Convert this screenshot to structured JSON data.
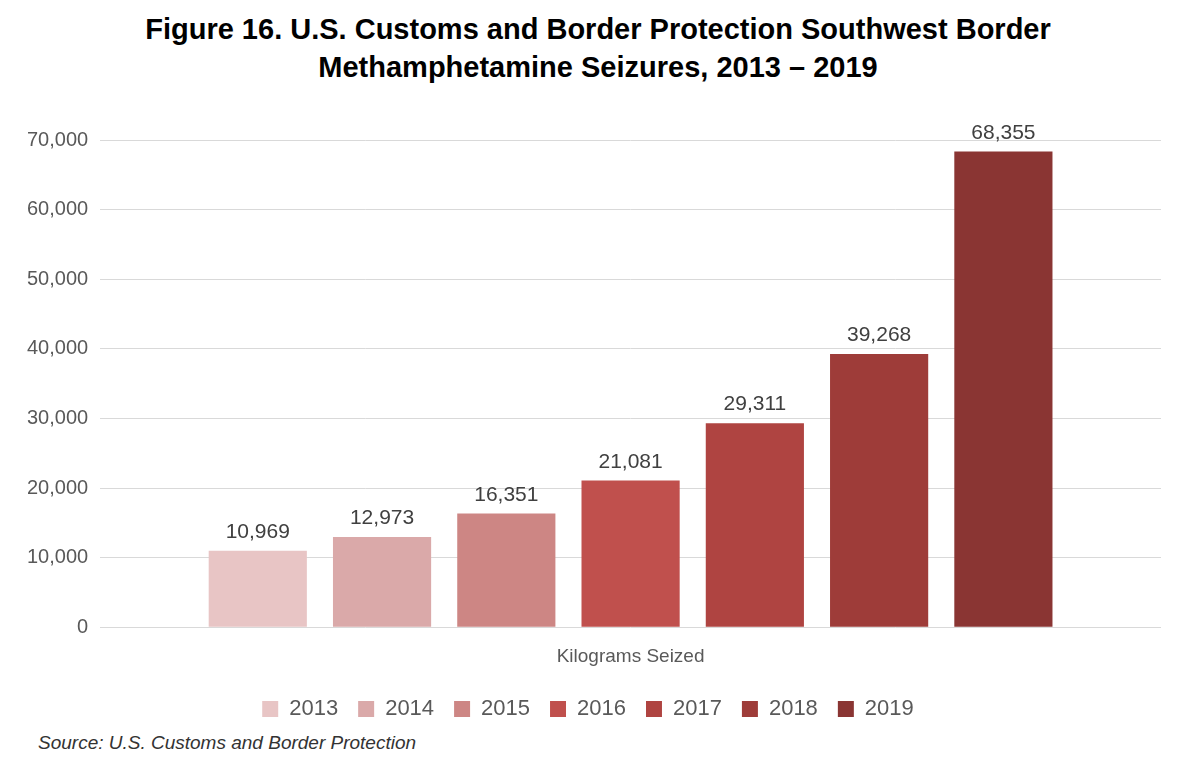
{
  "chart_data": {
    "type": "bar",
    "title": "Figure 16. U.S. Customs and Border Protection Southwest Border Methamphetamine Seizures, 2013 – 2019",
    "source": "Source: U.S. Customs and Border Protection",
    "categories": [
      "Kilograms Seized"
    ],
    "series": [
      {
        "name": "2013",
        "color": "#e8c5c5",
        "values": [
          10969
        ],
        "value_labels": [
          "10,969"
        ]
      },
      {
        "name": "2014",
        "color": "#daa9a9",
        "values": [
          12973
        ],
        "value_labels": [
          "12,973"
        ]
      },
      {
        "name": "2015",
        "color": "#cd8684",
        "values": [
          16351
        ],
        "value_labels": [
          "16,351"
        ]
      },
      {
        "name": "2016",
        "color": "#c0504d",
        "values": [
          21081
        ],
        "value_labels": [
          "21,081"
        ]
      },
      {
        "name": "2017",
        "color": "#af4441",
        "values": [
          29311
        ],
        "value_labels": [
          "29,311"
        ]
      },
      {
        "name": "2018",
        "color": "#9e3c39",
        "values": [
          39268
        ],
        "value_labels": [
          "39,268"
        ]
      },
      {
        "name": "2019",
        "color": "#8a3533",
        "values": [
          68355
        ],
        "value_labels": [
          "68,355"
        ]
      }
    ],
    "ylim": [
      0,
      70000
    ],
    "yticks": [
      0,
      {
        "value": 10000,
        "label": "10,000"
      },
      {
        "value": 20000,
        "label": "20,000"
      },
      {
        "value": 30000,
        "label": "30,000"
      },
      {
        "value": 40000,
        "label": "40,000"
      },
      {
        "value": 50000,
        "label": "50,000"
      },
      {
        "value": 60000,
        "label": "60,000"
      },
      {
        "value": 70000,
        "label": "70,000"
      }
    ],
    "grid": true,
    "legend": "bottom",
    "data_labels": true
  }
}
